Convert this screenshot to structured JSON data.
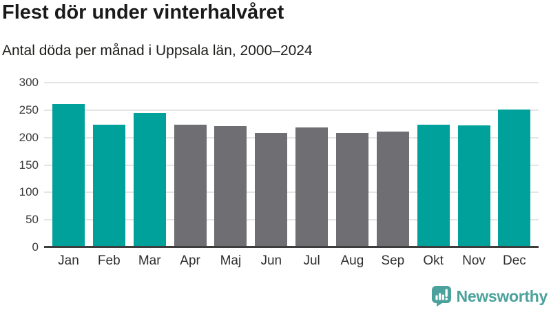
{
  "header": {
    "title": "Flest dör under vinterhalvåret",
    "subtitle": "Antal döda per månad i Uppsala län, 2000–2024"
  },
  "chart_data": {
    "type": "bar",
    "title": "Flest dör under vinterhalvåret",
    "subtitle": "Antal döda per månad i Uppsala län, 2000–2024",
    "categories": [
      "Jan",
      "Feb",
      "Mar",
      "Apr",
      "Maj",
      "Jun",
      "Jul",
      "Aug",
      "Sep",
      "Okt",
      "Nov",
      "Dec"
    ],
    "values": [
      261,
      224,
      245,
      224,
      221,
      209,
      218,
      209,
      211,
      224,
      222,
      251
    ],
    "xlabel": "",
    "ylabel": "",
    "ylim": [
      0,
      300
    ],
    "yticks": [
      0,
      50,
      100,
      150,
      200,
      250,
      300
    ],
    "grid": true,
    "legend": "none",
    "colors": {
      "winter_highlight": "#00a19a",
      "summer_base": "#6e6e73"
    },
    "highlight_indices": [
      0,
      1,
      2,
      9,
      10,
      11
    ]
  },
  "branding": {
    "logo_text": "Newsworthy",
    "logo_color": "#4ba19b",
    "logo_icon": "bar-chart-speech-bubble-icon"
  }
}
